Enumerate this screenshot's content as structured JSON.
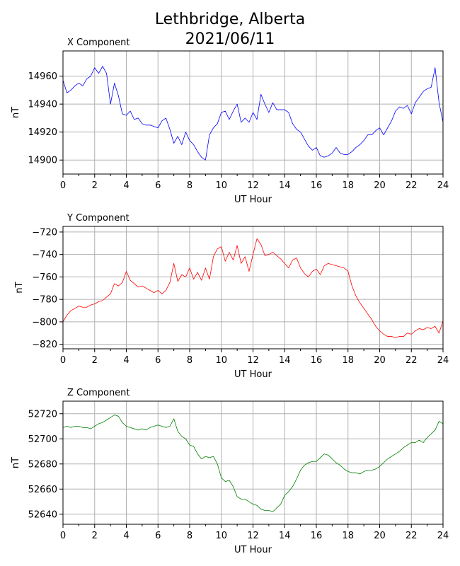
{
  "figure": {
    "title_line1": "Lethbridge, Alberta",
    "title_line2": "2021/06/11"
  },
  "chart_data": [
    {
      "type": "line",
      "title": "X Component",
      "xlabel": "UT Hour",
      "ylabel": "nT",
      "xlim": [
        0,
        24
      ],
      "ylim": [
        14890,
        14978
      ],
      "xticks": [
        0,
        2,
        4,
        6,
        8,
        10,
        12,
        14,
        16,
        18,
        20,
        22,
        24
      ],
      "yticks": [
        14900,
        14920,
        14940,
        14960
      ],
      "grid": true,
      "color": "#0000ff",
      "x": [
        0,
        0.25,
        0.5,
        0.75,
        1.0,
        1.25,
        1.5,
        1.75,
        2.0,
        2.25,
        2.5,
        2.75,
        3.0,
        3.25,
        3.5,
        3.75,
        4.0,
        4.25,
        4.5,
        4.75,
        5.0,
        5.25,
        5.5,
        5.75,
        6.0,
        6.25,
        6.5,
        6.75,
        7.0,
        7.25,
        7.5,
        7.75,
        8.0,
        8.25,
        8.5,
        8.75,
        9.0,
        9.25,
        9.5,
        9.75,
        10.0,
        10.25,
        10.5,
        10.75,
        11.0,
        11.25,
        11.5,
        11.75,
        12.0,
        12.25,
        12.5,
        12.75,
        13.0,
        13.25,
        13.5,
        13.75,
        14.0,
        14.25,
        14.5,
        14.75,
        15.0,
        15.25,
        15.5,
        15.75,
        16.0,
        16.25,
        16.5,
        16.75,
        17.0,
        17.25,
        17.5,
        17.75,
        18.0,
        18.25,
        18.5,
        18.75,
        19.0,
        19.25,
        19.5,
        19.75,
        20.0,
        20.25,
        20.5,
        20.75,
        21.0,
        21.25,
        21.5,
        21.75,
        22.0,
        22.25,
        22.5,
        22.75,
        23.0,
        23.25,
        23.5,
        23.75,
        24.0
      ],
      "y": [
        14957,
        14948,
        14950,
        14953,
        14955,
        14953,
        14958,
        14960,
        14966,
        14962,
        14967,
        14962,
        14940,
        14955,
        14946,
        14933,
        14932,
        14935,
        14929,
        14930,
        14926,
        14925,
        14925,
        14924,
        14923,
        14928,
        14930,
        14922,
        14912,
        14917,
        14911,
        14920,
        14914,
        14911,
        14906,
        14902,
        14900,
        14918,
        14923,
        14926,
        14934,
        14935,
        14929,
        14935,
        14940,
        14927,
        14930,
        14927,
        14934,
        14929,
        14947,
        14940,
        14934,
        14941,
        14936,
        14936,
        14936,
        14934,
        14926,
        14922,
        14920,
        14915,
        14910,
        14907,
        14909,
        14903,
        14902,
        14903,
        14905,
        14909,
        14905,
        14904,
        14904,
        14906,
        14909,
        14911,
        14914,
        14918,
        14918,
        14921,
        14923,
        14918,
        14923,
        14928,
        14935,
        14938,
        14937,
        14939,
        14933,
        14941,
        14945,
        14949,
        14951,
        14952,
        14966,
        14941,
        14927
      ]
    },
    {
      "type": "line",
      "title": "Y Component",
      "xlabel": "UT Hour",
      "ylabel": "nT",
      "xlim": [
        0,
        24
      ],
      "ylim": [
        -824,
        -715
      ],
      "xticks": [
        0,
        2,
        4,
        6,
        8,
        10,
        12,
        14,
        16,
        18,
        20,
        22,
        24
      ],
      "yticks": [
        -820,
        -800,
        -780,
        -760,
        -740,
        -720
      ],
      "grid": true,
      "color": "#ff0000",
      "x": [
        0,
        0.25,
        0.5,
        0.75,
        1.0,
        1.25,
        1.5,
        1.75,
        2.0,
        2.25,
        2.5,
        2.75,
        3.0,
        3.25,
        3.5,
        3.75,
        4.0,
        4.25,
        4.5,
        4.75,
        5.0,
        5.25,
        5.5,
        5.75,
        6.0,
        6.25,
        6.5,
        6.75,
        7.0,
        7.25,
        7.5,
        7.75,
        8.0,
        8.25,
        8.5,
        8.75,
        9.0,
        9.25,
        9.5,
        9.75,
        10.0,
        10.25,
        10.5,
        10.75,
        11.0,
        11.25,
        11.5,
        11.75,
        12.0,
        12.25,
        12.5,
        12.75,
        13.0,
        13.25,
        13.5,
        13.75,
        14.0,
        14.25,
        14.5,
        14.75,
        15.0,
        15.25,
        15.5,
        15.75,
        16.0,
        16.25,
        16.5,
        16.75,
        17.0,
        17.25,
        17.5,
        17.75,
        18.0,
        18.25,
        18.5,
        18.75,
        19.0,
        19.25,
        19.5,
        19.75,
        20.0,
        20.25,
        20.5,
        20.75,
        21.0,
        21.25,
        21.5,
        21.75,
        22.0,
        22.25,
        22.5,
        22.75,
        23.0,
        23.25,
        23.5,
        23.75,
        24.0
      ],
      "y": [
        -800,
        -794,
        -790,
        -788,
        -786,
        -787,
        -787,
        -785,
        -784,
        -782,
        -781,
        -778,
        -775,
        -766,
        -768,
        -765,
        -755,
        -763,
        -766,
        -769,
        -768,
        -770,
        -772,
        -774,
        -772,
        -775,
        -772,
        -765,
        -748,
        -764,
        -758,
        -760,
        -752,
        -762,
        -756,
        -763,
        -752,
        -762,
        -742,
        -735,
        -733,
        -746,
        -738,
        -745,
        -732,
        -748,
        -742,
        -755,
        -740,
        -726,
        -731,
        -741,
        -740,
        -738,
        -741,
        -744,
        -748,
        -752,
        -745,
        -743,
        -752,
        -757,
        -760,
        -755,
        -753,
        -758,
        -750,
        -748,
        -749,
        -750,
        -751,
        -752,
        -755,
        -768,
        -777,
        -783,
        -788,
        -793,
        -798,
        -804,
        -808,
        -811,
        -813,
        -813,
        -814,
        -813,
        -813,
        -810,
        -811,
        -808,
        -806,
        -807,
        -805,
        -806,
        -804,
        -810,
        -799
      ]
    },
    {
      "type": "line",
      "title": "Z Component",
      "xlabel": "UT Hour",
      "ylabel": "nT",
      "xlim": [
        0,
        24
      ],
      "ylim": [
        52632,
        52730
      ],
      "xticks": [
        0,
        2,
        4,
        6,
        8,
        10,
        12,
        14,
        16,
        18,
        20,
        22,
        24
      ],
      "yticks": [
        52640,
        52660,
        52680,
        52700,
        52720
      ],
      "grid": true,
      "color": "#008000",
      "x": [
        0,
        0.25,
        0.5,
        0.75,
        1.0,
        1.25,
        1.5,
        1.75,
        2.0,
        2.25,
        2.5,
        2.75,
        3.0,
        3.25,
        3.5,
        3.75,
        4.0,
        4.25,
        4.5,
        4.75,
        5.0,
        5.25,
        5.5,
        5.75,
        6.0,
        6.25,
        6.5,
        6.75,
        7.0,
        7.25,
        7.5,
        7.75,
        8.0,
        8.25,
        8.5,
        8.75,
        9.0,
        9.25,
        9.5,
        9.75,
        10.0,
        10.25,
        10.5,
        10.75,
        11.0,
        11.25,
        11.5,
        11.75,
        12.0,
        12.25,
        12.5,
        12.75,
        13.0,
        13.25,
        13.5,
        13.75,
        14.0,
        14.25,
        14.5,
        14.75,
        15.0,
        15.25,
        15.5,
        15.75,
        16.0,
        16.25,
        16.5,
        16.75,
        17.0,
        17.25,
        17.5,
        17.75,
        18.0,
        18.25,
        18.5,
        18.75,
        19.0,
        19.25,
        19.5,
        19.75,
        20.0,
        20.25,
        20.5,
        20.75,
        21.0,
        21.25,
        21.5,
        21.75,
        22.0,
        22.25,
        22.5,
        22.75,
        23.0,
        23.25,
        23.5,
        23.75,
        24.0
      ],
      "y": [
        52709,
        52710,
        52709,
        52710,
        52710,
        52709,
        52709,
        52708,
        52710,
        52712,
        52713,
        52715,
        52717,
        52719,
        52718,
        52713,
        52710,
        52709,
        52708,
        52707,
        52708,
        52707,
        52709,
        52710,
        52711,
        52710,
        52709,
        52710,
        52716,
        52706,
        52702,
        52700,
        52695,
        52694,
        52688,
        52684,
        52686,
        52685,
        52686,
        52680,
        52669,
        52666,
        52667,
        52662,
        52654,
        52652,
        52652,
        52650,
        52648,
        52647,
        52644,
        52643,
        52643,
        52642,
        52645,
        52648,
        52655,
        52658,
        52662,
        52668,
        52675,
        52679,
        52681,
        52682,
        52682,
        52685,
        52688,
        52687,
        52684,
        52681,
        52679,
        52676,
        52674,
        52673,
        52673,
        52672,
        52674,
        52675,
        52675,
        52676,
        52678,
        52681,
        52684,
        52686,
        52688,
        52690,
        52693,
        52695,
        52697,
        52697,
        52699,
        52697,
        52701,
        52704,
        52707,
        52714,
        52712
      ]
    }
  ]
}
